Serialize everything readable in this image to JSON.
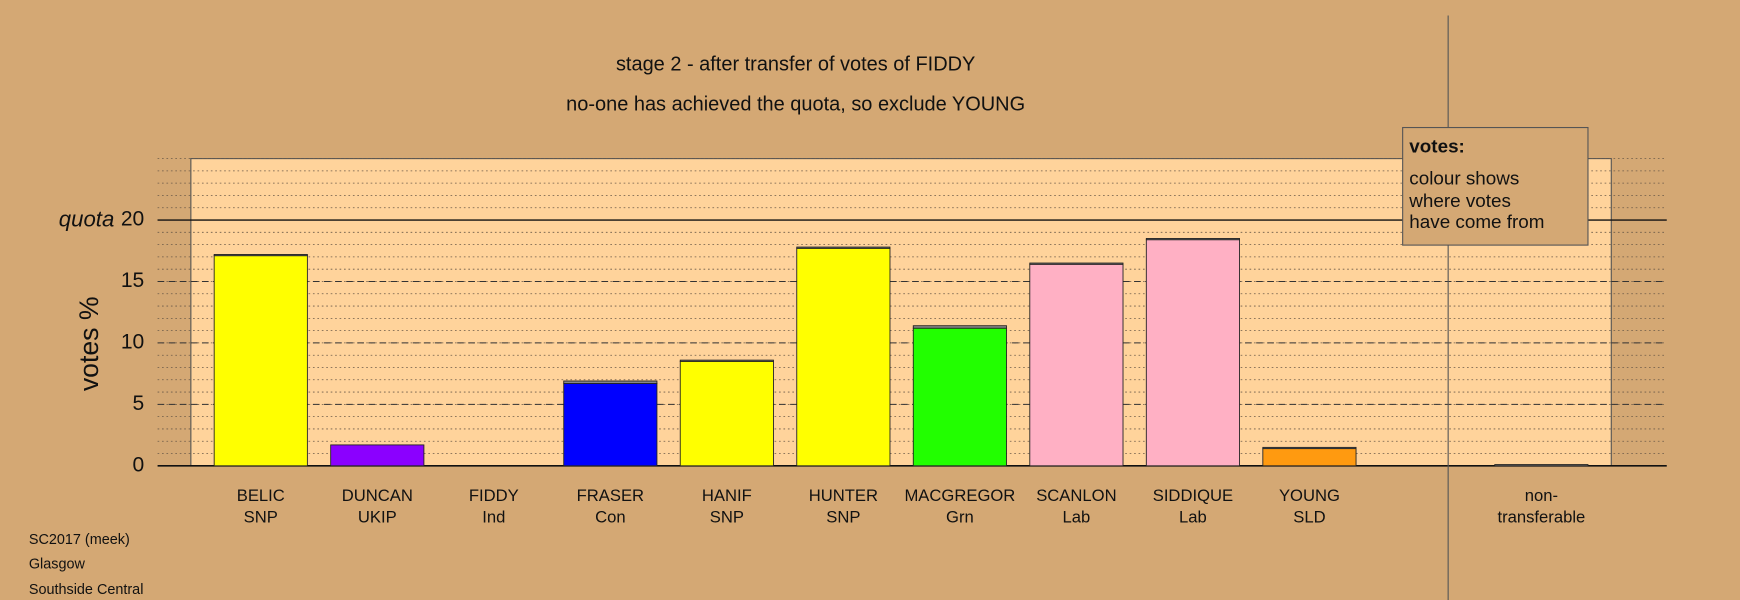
{
  "chart_data": {
    "type": "bar",
    "title": "stage 2 - after transfer of votes of FIDDY",
    "subtitle": "no-one has achieved the quota, so exclude YOUNG",
    "y_label": "votes %",
    "quota_label": "quota",
    "quota": 20,
    "categories": [
      "BELIC",
      "DUNCAN",
      "FIDDY",
      "FRASER",
      "HANIF",
      "HUNTER",
      "MACGREGOR",
      "SCANLON",
      "SIDDIQUE",
      "YOUNG"
    ],
    "parties": [
      "SNP",
      "UKIP",
      "Ind",
      "Con",
      "SNP",
      "SNP",
      "Grn",
      "Lab",
      "Lab",
      "SLD"
    ],
    "values": [
      17.1,
      1.7,
      0,
      6.7,
      8.5,
      17.7,
      11.2,
      16.4,
      18.4,
      1.4
    ],
    "colors": [
      "#ffff00",
      "#8b00ff",
      "#888888",
      "#0000ff",
      "#ffff00",
      "#ffff00",
      "#22ff00",
      "#ffb0c4",
      "#ffb0c4",
      "#ff9a10"
    ],
    "transfer_values": [
      0.1,
      0,
      0,
      0.2,
      0.1,
      0.1,
      0.2,
      0.1,
      0.1,
      0.1
    ],
    "transfer_color": "#888888",
    "nontransferable": {
      "label": [
        "non-",
        "transferable"
      ],
      "value": 0.1
    },
    "ylim": [
      0,
      25
    ],
    "yticks": [
      0,
      5,
      10,
      15,
      20
    ],
    "grid": true,
    "legend": {
      "title": "votes:",
      "lines": [
        "colour shows",
        "where votes",
        "have come from"
      ]
    },
    "footer": [
      "SC2017 (meek)",
      "Glasgow",
      "Southside Central"
    ]
  }
}
